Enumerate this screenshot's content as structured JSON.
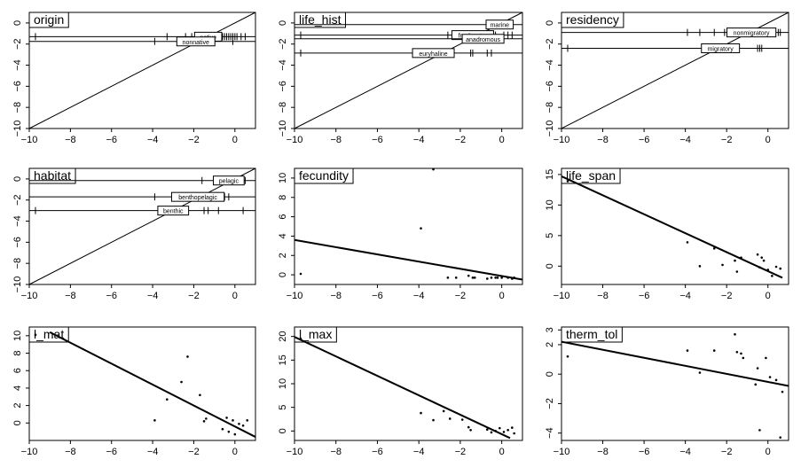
{
  "chart_data": [
    {
      "type": "factor_lines",
      "title": "origin",
      "xlim": [
        -10,
        1
      ],
      "ylim": [
        -10,
        1
      ],
      "xticks": [
        -10,
        -8,
        -6,
        -4,
        -2,
        0
      ],
      "yticks": [
        0,
        -2,
        -4,
        -6,
        -8,
        -10
      ],
      "series": [
        {
          "name": "native",
          "y": -1.3,
          "label_x": -1.3,
          "points": [
            -9.7,
            -3.3,
            -2.4,
            -2.1,
            -1.6,
            -1.3,
            -0.9,
            -0.6,
            -0.5,
            -0.4,
            -0.3,
            -0.2,
            -0.1,
            0.0,
            0.1,
            0.3,
            0.5
          ]
        },
        {
          "name": "nonnative",
          "y": -1.75,
          "label_x": -1.9,
          "points": [
            -3.9,
            -1.0,
            -0.1
          ]
        }
      ]
    },
    {
      "type": "factor_lines",
      "title": "life_hist",
      "xlim": [
        -10,
        1
      ],
      "ylim": [
        -10,
        1
      ],
      "xticks": [
        -10,
        -8,
        -6,
        -4,
        -2,
        0
      ],
      "yticks": [
        0,
        -2,
        -4,
        -6,
        -8,
        -10
      ],
      "series": [
        {
          "name": "marine",
          "y": -0.15,
          "label_x": -0.1,
          "points": [
            0.2
          ]
        },
        {
          "name": "freshwater",
          "y": -1.15,
          "label_x": -1.4,
          "points": [
            -9.7,
            -2.6,
            -2.3,
            -1.9,
            -1.6,
            -1.2,
            -0.9,
            -0.7,
            -0.6,
            -0.5,
            -0.4,
            -0.3,
            0.1,
            0.3,
            0.5
          ]
        },
        {
          "name": "anadromous",
          "y": -1.5,
          "label_x": -0.9,
          "points": [
            -0.8,
            -0.3
          ]
        },
        {
          "name": "euryhaline",
          "y": -2.85,
          "label_x": -3.3,
          "points": [
            -9.7,
            -3.9,
            -1.5,
            -1.4,
            -0.7,
            -0.5
          ]
        }
      ]
    },
    {
      "type": "factor_lines",
      "title": "residency",
      "xlim": [
        -10,
        1
      ],
      "ylim": [
        -10,
        1
      ],
      "xticks": [
        -10,
        -8,
        -6,
        -4,
        -2,
        0
      ],
      "yticks": [
        0,
        -2,
        -4,
        -6,
        -8,
        -10
      ],
      "series": [
        {
          "name": "nonmigratory",
          "y": -0.9,
          "label_x": -0.8,
          "points": [
            -3.9,
            -3.3,
            -2.6,
            -2.1,
            -1.6,
            -1.3,
            -0.9,
            -0.7,
            -0.5,
            -0.3,
            -0.2,
            0.3,
            0.5,
            0.6
          ]
        },
        {
          "name": "migratory",
          "y": -2.4,
          "label_x": -2.3,
          "points": [
            -9.7,
            -1.6,
            -1.4,
            -0.5,
            -0.4,
            -0.3
          ]
        }
      ]
    },
    {
      "type": "factor_lines",
      "title": "habitat",
      "xlim": [
        -10,
        1
      ],
      "ylim": [
        -10,
        1
      ],
      "xticks": [
        -10,
        -8,
        -6,
        -4,
        -2,
        0
      ],
      "yticks": [
        0,
        -2,
        -4,
        -6,
        -8,
        -10
      ],
      "series": [
        {
          "name": "pelagic",
          "y": -0.15,
          "label_x": -0.3,
          "points": [
            -1.6,
            -0.7,
            -0.5,
            -0.3,
            -0.1,
            0.3,
            0.5
          ]
        },
        {
          "name": "benthopelagic",
          "y": -1.7,
          "label_x": -1.8,
          "points": [
            -3.9,
            -2.6,
            -2.1,
            -1.9,
            -1.4,
            -0.9,
            -0.5,
            -0.3
          ]
        },
        {
          "name": "benthic",
          "y": -3.0,
          "label_x": -3.0,
          "points": [
            -9.7,
            -3.3,
            -2.4,
            -1.5,
            -1.3,
            -0.8,
            0.4
          ]
        }
      ]
    },
    {
      "type": "scatter",
      "title": "fecundity",
      "xlim": [
        -10,
        1
      ],
      "ylim": [
        -1,
        11
      ],
      "xticks": [
        -10,
        -8,
        -6,
        -4,
        -2,
        0
      ],
      "yticks": [
        0,
        2,
        4,
        6,
        8,
        10
      ],
      "points": [
        {
          "x": -9.7,
          "y": 0.1
        },
        {
          "x": -3.9,
          "y": 4.8
        },
        {
          "x": -3.3,
          "y": 10.9
        },
        {
          "x": -2.6,
          "y": -0.3
        },
        {
          "x": -2.2,
          "y": -0.3
        },
        {
          "x": -1.6,
          "y": -0.1
        },
        {
          "x": -1.4,
          "y": -0.3
        },
        {
          "x": -1.3,
          "y": -0.3
        },
        {
          "x": -0.7,
          "y": -0.4
        },
        {
          "x": -0.5,
          "y": -0.3
        },
        {
          "x": -0.3,
          "y": -0.3
        },
        {
          "x": -0.2,
          "y": -0.3
        },
        {
          "x": 0.0,
          "y": -0.3
        },
        {
          "x": 0.3,
          "y": -0.3
        },
        {
          "x": 0.5,
          "y": -0.4
        },
        {
          "x": 0.6,
          "y": -0.3
        }
      ],
      "line": [
        [
          -10,
          3.6
        ],
        [
          1,
          -0.5
        ]
      ]
    },
    {
      "type": "scatter",
      "title": "life_span",
      "xlim": [
        -10,
        1
      ],
      "ylim": [
        -3,
        16
      ],
      "xticks": [
        -10,
        -8,
        -6,
        -4,
        -2,
        0
      ],
      "yticks": [
        0,
        5,
        10,
        15
      ],
      "points": [
        {
          "x": -9.7,
          "y": 13.9
        },
        {
          "x": -3.9,
          "y": 3.9
        },
        {
          "x": -3.3,
          "y": 0.0
        },
        {
          "x": -2.6,
          "y": 2.9
        },
        {
          "x": -2.2,
          "y": 0.2
        },
        {
          "x": -1.6,
          "y": 0.9
        },
        {
          "x": -1.5,
          "y": -0.9
        },
        {
          "x": -1.3,
          "y": 1.4
        },
        {
          "x": -0.5,
          "y": 1.9
        },
        {
          "x": -0.4,
          "y": -0.2
        },
        {
          "x": -0.3,
          "y": 1.4
        },
        {
          "x": -0.2,
          "y": 0.9
        },
        {
          "x": 0.0,
          "y": -0.6
        },
        {
          "x": 0.2,
          "y": -1.6
        },
        {
          "x": 0.4,
          "y": -0.1
        },
        {
          "x": 0.6,
          "y": -0.4
        }
      ],
      "line": [
        [
          -10,
          14.7
        ],
        [
          0.7,
          -1.9
        ]
      ]
    },
    {
      "type": "scatter",
      "title": "l_mat",
      "xlim": [
        -10,
        1
      ],
      "ylim": [
        -2,
        11
      ],
      "xticks": [
        -10,
        -8,
        -6,
        -4,
        -2,
        0
      ],
      "yticks": [
        0,
        2,
        4,
        6,
        8,
        10
      ],
      "points": [
        {
          "x": -9.7,
          "y": 10.1
        },
        {
          "x": -3.9,
          "y": 0.3
        },
        {
          "x": -3.3,
          "y": 2.7
        },
        {
          "x": -2.6,
          "y": 4.7
        },
        {
          "x": -2.3,
          "y": 7.6
        },
        {
          "x": -1.7,
          "y": 3.2
        },
        {
          "x": -1.5,
          "y": 0.2
        },
        {
          "x": -1.4,
          "y": 0.5
        },
        {
          "x": -0.6,
          "y": -0.7
        },
        {
          "x": -0.4,
          "y": 0.6
        },
        {
          "x": -0.3,
          "y": -1.0
        },
        {
          "x": -0.1,
          "y": 0.3
        },
        {
          "x": 0.0,
          "y": -1.3
        },
        {
          "x": 0.2,
          "y": -0.1
        },
        {
          "x": 0.4,
          "y": -0.3
        },
        {
          "x": 0.6,
          "y": 0.3
        }
      ],
      "line": [
        [
          -9.0,
          10.4
        ],
        [
          1,
          -1.6
        ]
      ]
    },
    {
      "type": "scatter",
      "title": "l_max",
      "xlim": [
        -10,
        1
      ],
      "ylim": [
        -2,
        22
      ],
      "xticks": [
        -10,
        -8,
        -6,
        -4,
        -2,
        0
      ],
      "yticks": [
        0,
        5,
        10,
        15,
        20
      ],
      "points": [
        {
          "x": -9.7,
          "y": 19.5
        },
        {
          "x": -3.9,
          "y": 3.8
        },
        {
          "x": -3.3,
          "y": 2.3
        },
        {
          "x": -2.8,
          "y": 4.2
        },
        {
          "x": -2.5,
          "y": 2.6
        },
        {
          "x": -1.9,
          "y": 2.4
        },
        {
          "x": -1.6,
          "y": 0.8
        },
        {
          "x": -1.5,
          "y": 0.2
        },
        {
          "x": -0.7,
          "y": 0.3
        },
        {
          "x": -0.5,
          "y": -0.3
        },
        {
          "x": -0.3,
          "y": 0.0
        },
        {
          "x": -0.1,
          "y": 0.6
        },
        {
          "x": 0.1,
          "y": -0.2
        },
        {
          "x": 0.3,
          "y": 0.2
        },
        {
          "x": 0.5,
          "y": 0.7
        },
        {
          "x": 0.6,
          "y": -0.5
        }
      ],
      "line": [
        [
          -10,
          19.9
        ],
        [
          0.4,
          -1.5
        ]
      ]
    },
    {
      "type": "scatter",
      "title": "therm_tol",
      "xlim": [
        -10,
        1
      ],
      "ylim": [
        -4.5,
        3.2
      ],
      "xticks": [
        -10,
        -8,
        -6,
        -4,
        -2,
        0
      ],
      "yticks": [
        -4,
        -2,
        0,
        2
      ],
      "extra_ytick_labels": [
        {
          "value": 3,
          "label": "3"
        }
      ],
      "points": [
        {
          "x": -9.7,
          "y": 1.2
        },
        {
          "x": -3.9,
          "y": 1.6
        },
        {
          "x": -3.3,
          "y": 0.1
        },
        {
          "x": -2.6,
          "y": 1.6
        },
        {
          "x": -1.6,
          "y": 2.7
        },
        {
          "x": -1.5,
          "y": 1.5
        },
        {
          "x": -1.3,
          "y": 1.4
        },
        {
          "x": -1.2,
          "y": 1.1
        },
        {
          "x": -0.6,
          "y": -0.7
        },
        {
          "x": -0.5,
          "y": 0.4
        },
        {
          "x": -0.4,
          "y": -3.8
        },
        {
          "x": -0.1,
          "y": 1.1
        },
        {
          "x": 0.1,
          "y": -0.2
        },
        {
          "x": 0.4,
          "y": -0.4
        },
        {
          "x": 0.6,
          "y": -4.3
        },
        {
          "x": 0.7,
          "y": -1.2
        }
      ],
      "line": [
        [
          -10,
          2.2
        ],
        [
          1,
          -0.8
        ]
      ]
    }
  ]
}
